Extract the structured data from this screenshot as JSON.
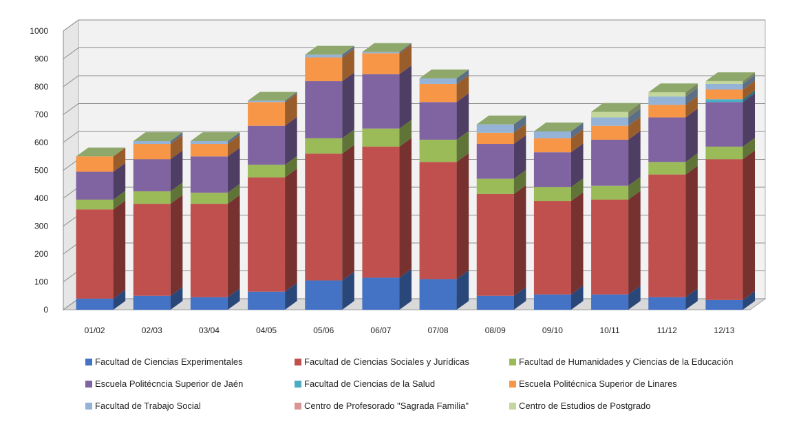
{
  "chart_data": {
    "type": "bar",
    "stacked": true,
    "three_d": true,
    "categories": [
      "01/02",
      "02/03",
      "03/04",
      "04/05",
      "05/06",
      "06/07",
      "07/08",
      "08/09",
      "09/10",
      "10/11",
      "11/12",
      "12/13"
    ],
    "ylim": [
      0,
      1000
    ],
    "yticks": [
      0,
      100,
      200,
      300,
      400,
      500,
      600,
      700,
      800,
      900,
      1000
    ],
    "grid": true,
    "legend_position": "bottom",
    "series": [
      {
        "name": "Facultad de Ciencias Experimentales",
        "color": "#4472C4",
        "values": [
          40,
          50,
          45,
          65,
          105,
          115,
          110,
          50,
          55,
          55,
          45,
          35
        ]
      },
      {
        "name": "Facultad de Ciencias Sociales y Jurídicas",
        "color": "#C0504D",
        "values": [
          320,
          330,
          335,
          410,
          455,
          470,
          420,
          365,
          335,
          340,
          440,
          505
        ]
      },
      {
        "name": "Facultad de Humanidades y Ciencias de la Educación",
        "color": "#9BBB59",
        "values": [
          35,
          45,
          40,
          45,
          55,
          65,
          80,
          55,
          50,
          50,
          45,
          45
        ]
      },
      {
        "name": "Escuela Politécncia Superior de Jaén",
        "color": "#8064A2",
        "values": [
          100,
          115,
          130,
          140,
          205,
          195,
          135,
          125,
          125,
          165,
          160,
          160
        ]
      },
      {
        "name": "Facultad de Ciencias de la Salud",
        "color": "#4BACC6",
        "values": [
          0,
          0,
          0,
          0,
          0,
          0,
          0,
          0,
          0,
          0,
          0,
          10
        ]
      },
      {
        "name": "Escuela Politécnica  Superior de Linares",
        "color": "#F79646",
        "values": [
          55,
          55,
          45,
          85,
          85,
          75,
          65,
          40,
          50,
          50,
          45,
          35
        ]
      },
      {
        "name": "Facultad de Trabajo Social",
        "color": "#95B3D7",
        "values": [
          0,
          10,
          10,
          5,
          10,
          5,
          20,
          30,
          25,
          30,
          30,
          20
        ]
      },
      {
        "name": "Centro de Profesorado \"Sagrada Familia\"",
        "color": "#D99694",
        "values": [
          0,
          0,
          0,
          0,
          0,
          0,
          0,
          0,
          0,
          0,
          0,
          0
        ]
      },
      {
        "name": "Centro de Estudios de Postgrado",
        "color": "#C3D69B",
        "values": [
          0,
          0,
          0,
          0,
          0,
          0,
          0,
          0,
          0,
          20,
          15,
          10
        ]
      }
    ]
  }
}
